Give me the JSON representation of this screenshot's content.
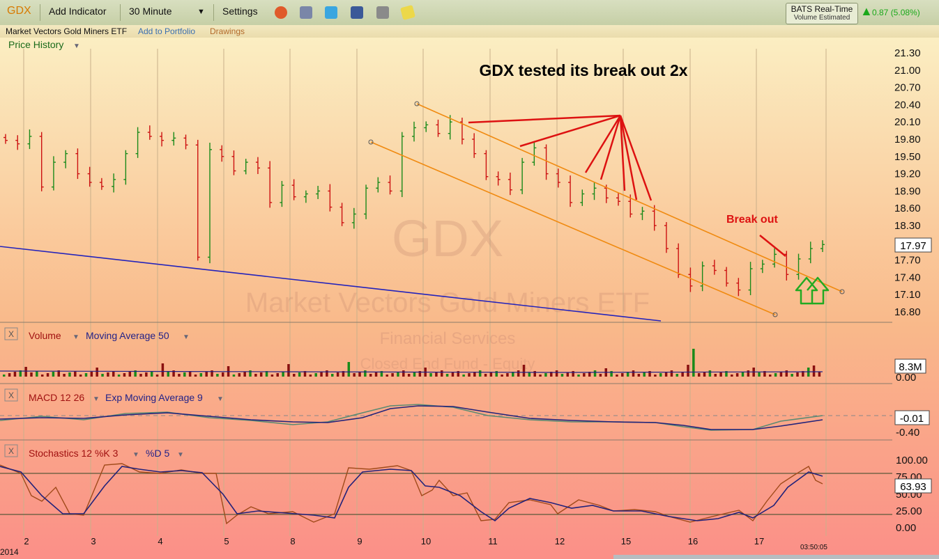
{
  "toolbar": {
    "symbol": "GDX",
    "add_indicator": "Add Indicator",
    "interval": "30 Minute",
    "settings": "Settings",
    "data_source": "BATS Real-Time",
    "volume_note": "Volume Estimated",
    "change": "0.87 (5.08%)"
  },
  "subbar": {
    "name": "Market Vectors Gold Miners ETF",
    "add_to_portfolio": "Add to Portfolio",
    "drawings": "Drawings"
  },
  "colors": {
    "up": "#1a8a1a",
    "down": "#cc1111",
    "trend": "#f08a10",
    "support": "#2222bb",
    "annotation": "#dd1111",
    "arrow": "#22aa22"
  },
  "chart_data": [
    {
      "type": "candlestick",
      "panel": "Price History",
      "title": "GDX tested its break out 2x",
      "watermark": [
        "GDX",
        "Market Vectors Gold Miners ETF",
        "Financial Services",
        "Closed End Fund - Equity"
      ],
      "ylim": [
        16.7,
        21.4
      ],
      "y_ticks": [
        21.3,
        21.0,
        20.7,
        20.4,
        20.1,
        19.8,
        19.5,
        19.2,
        18.9,
        18.6,
        18.3,
        18.0,
        17.7,
        17.4,
        17.1,
        16.8
      ],
      "last_price": "17.97",
      "x_ticks": [
        "2",
        "3",
        "4",
        "5",
        "8",
        "9",
        "10",
        "11",
        "12",
        "15",
        "16",
        "17"
      ],
      "year": "2014",
      "time_label": "03:50:05",
      "closes": [
        19.78,
        19.72,
        19.85,
        18.97,
        19.4,
        19.55,
        19.2,
        19.05,
        18.98,
        19.1,
        19.55,
        19.92,
        19.85,
        19.78,
        19.82,
        19.7,
        17.75,
        19.62,
        19.5,
        19.25,
        19.4,
        19.3,
        18.7,
        19.0,
        18.8,
        18.85,
        18.9,
        18.62,
        18.35,
        18.5,
        18.95,
        19.05,
        18.9,
        19.85,
        20.0,
        20.05,
        19.9,
        20.1,
        19.8,
        19.55,
        19.15,
        19.1,
        18.92,
        19.4,
        19.65,
        19.2,
        19.05,
        18.7,
        18.85,
        18.95,
        18.78,
        18.72,
        18.5,
        18.55,
        18.3,
        17.9,
        17.45,
        17.25,
        17.6,
        17.52,
        17.3,
        17.18,
        17.55,
        17.63,
        17.8,
        17.45,
        17.72,
        17.9,
        17.97
      ],
      "annotations": [
        "Break out"
      ],
      "upper_trendline": [
        [
          20.42,
          0
        ],
        [
          17.15,
          1
        ]
      ],
      "lower_trendline": [
        [
          19.8,
          0
        ],
        [
          16.78,
          1
        ]
      ]
    },
    {
      "type": "bar",
      "panel": "Volume",
      "label": "Volume",
      "overlay": "Moving Average 50",
      "y_ticks": [
        "0.00"
      ],
      "last_value": "8.3M"
    },
    {
      "type": "line",
      "panel": "MACD",
      "label": "MACD 12 26",
      "overlay": "Exp Moving Average 9",
      "y_ticks": [
        "-0.40"
      ],
      "last_value": "-0.01"
    },
    {
      "type": "line",
      "panel": "Stochastics",
      "label": "Stochastics 12 %K 3",
      "overlay": "%D 5",
      "y_ticks": [
        "100.00",
        "75.00",
        "50.00",
        "25.00",
        "0.00"
      ],
      "last_value": "63.93"
    }
  ]
}
